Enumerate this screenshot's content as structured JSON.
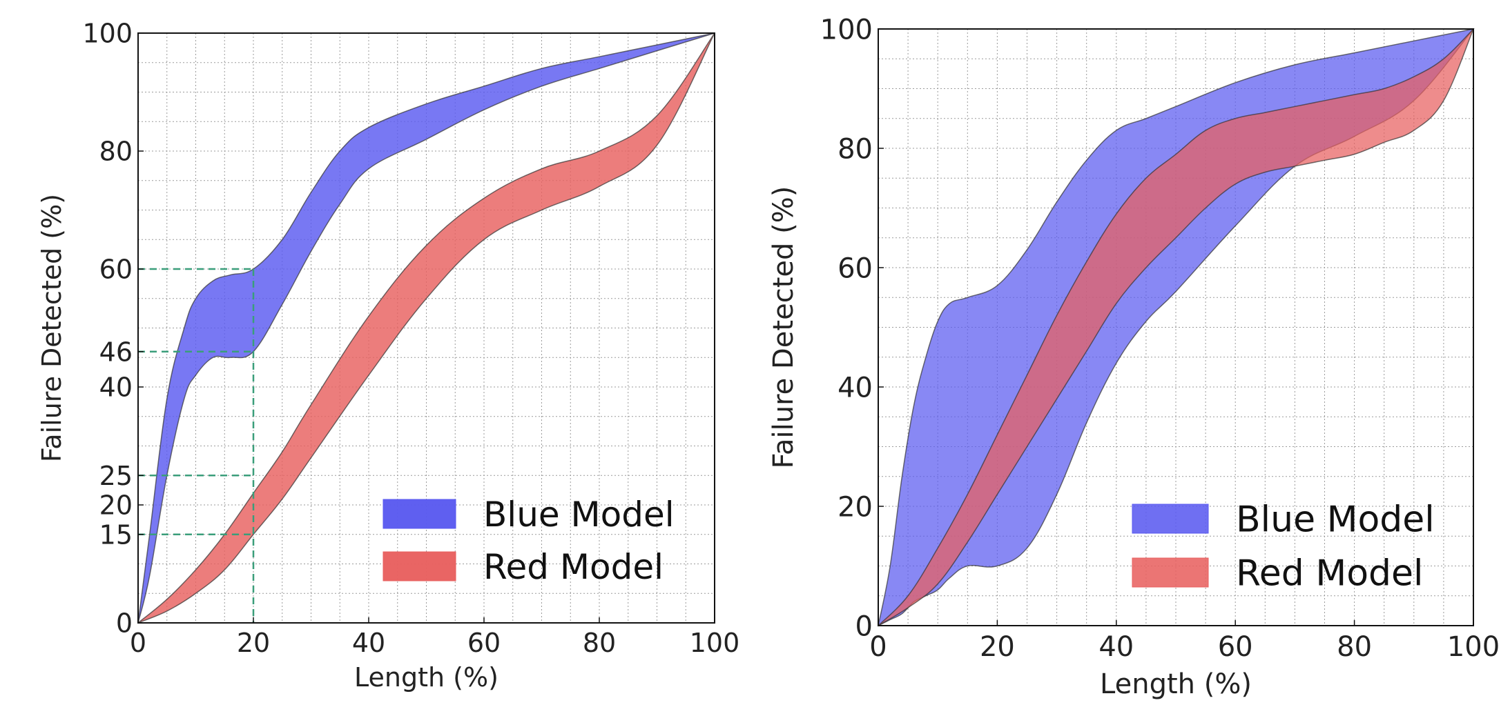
{
  "chart_data": [
    {
      "type": "area",
      "xlabel": "Length (%)",
      "ylabel": "Failure Detected (%)",
      "xlim": [
        0,
        100
      ],
      "ylim": [
        0,
        100
      ],
      "xticks": [
        0,
        20,
        40,
        60,
        80,
        100
      ],
      "yticks": [
        0,
        15,
        20,
        25,
        40,
        46,
        60,
        80,
        100
      ],
      "grid": true,
      "legend_position": "bottom-right",
      "reference_lines": {
        "x": 20,
        "y": [
          15,
          25,
          46,
          60
        ],
        "color": "#3a9e7a"
      },
      "series": [
        {
          "name": "Blue Model",
          "color": "#5a5af0",
          "x": [
            0,
            2,
            5,
            8,
            10,
            13,
            16,
            20,
            25,
            30,
            35,
            40,
            50,
            60,
            70,
            80,
            90,
            100
          ],
          "upper": [
            0,
            15,
            38,
            50,
            55,
            58,
            59,
            60,
            65,
            73,
            80,
            84,
            88,
            91,
            94,
            96,
            98,
            100
          ],
          "lower": [
            0,
            8,
            25,
            38,
            42,
            45,
            45,
            46,
            54,
            63,
            71,
            77,
            82,
            87,
            91,
            94,
            97,
            100
          ]
        },
        {
          "name": "Red Model",
          "color": "#e8605f",
          "x": [
            0,
            5,
            10,
            15,
            20,
            25,
            30,
            40,
            50,
            60,
            70,
            80,
            90,
            100
          ],
          "upper": [
            0,
            4,
            9,
            15,
            22,
            29,
            37,
            52,
            64,
            72,
            77,
            80,
            86,
            100
          ],
          "lower": [
            0,
            2,
            5,
            9,
            15,
            21,
            28,
            42,
            55,
            65,
            70,
            74,
            81,
            100
          ]
        }
      ]
    },
    {
      "type": "area",
      "xlabel": "Length (%)",
      "ylabel": "Failure Detected (%)",
      "xlim": [
        0,
        100
      ],
      "ylim": [
        0,
        100
      ],
      "xticks": [
        0,
        20,
        40,
        60,
        80,
        100
      ],
      "yticks": [
        0,
        20,
        40,
        60,
        80,
        100
      ],
      "grid": true,
      "legend_position": "bottom-right",
      "series": [
        {
          "name": "Blue Model",
          "color": "#5a5af0",
          "x": [
            0,
            2,
            4,
            6,
            8,
            10,
            12,
            15,
            20,
            25,
            30,
            35,
            40,
            45,
            50,
            60,
            70,
            80,
            90,
            100
          ],
          "upper": [
            0,
            10,
            25,
            37,
            45,
            51,
            54,
            55,
            57,
            63,
            71,
            78,
            83,
            85,
            87,
            91,
            94,
            96,
            98,
            100
          ],
          "lower": [
            0,
            1,
            2,
            4,
            5,
            6,
            8,
            10,
            10,
            13,
            22,
            34,
            44,
            51,
            56,
            67,
            77,
            82,
            88,
            100
          ]
        },
        {
          "name": "Red Model",
          "color": "#e8605f",
          "x": [
            0,
            5,
            10,
            15,
            20,
            25,
            30,
            35,
            40,
            45,
            50,
            55,
            60,
            65,
            70,
            75,
            80,
            85,
            90,
            95,
            100
          ],
          "upper": [
            0,
            5,
            13,
            22,
            32,
            42,
            52,
            61,
            69,
            75,
            79,
            83,
            85,
            86,
            87,
            88,
            89,
            90,
            92,
            95,
            100
          ],
          "lower": [
            0,
            3,
            7,
            14,
            22,
            30,
            38,
            46,
            54,
            60,
            65,
            70,
            74,
            76,
            77,
            78,
            79,
            81,
            83,
            88,
            100
          ]
        }
      ]
    }
  ]
}
